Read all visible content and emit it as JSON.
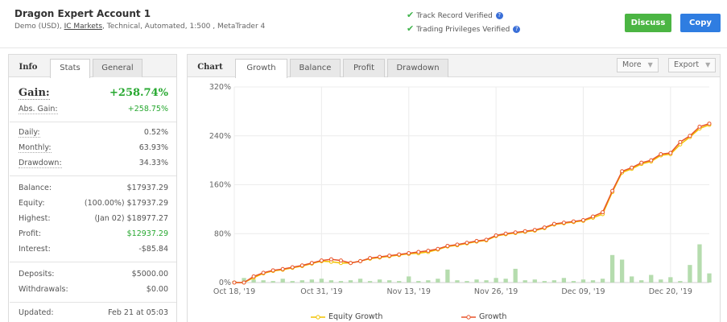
{
  "account": {
    "title": "Dragon Expert Account 1",
    "sub_prefix": "Demo (USD), ",
    "broker": "IC Markets",
    "sub_suffix": ", Technical, Automated, 1:500 , MetaTrader 4"
  },
  "verification": {
    "track_record": "Track Record Verified",
    "trading_privileges": "Trading Privileges Verified"
  },
  "buttons": {
    "discuss": "Discuss",
    "copy": "Copy"
  },
  "left_tabs": {
    "info": "Info",
    "stats": "Stats",
    "general": "General",
    "active": "stats"
  },
  "stats": {
    "gain_label": "Gain:",
    "gain_value": "+258.74%",
    "abs_gain_label": "Abs. Gain:",
    "abs_gain_value": "+258.75%",
    "daily_label": "Daily:",
    "daily_value": "0.52%",
    "monthly_label": "Monthly:",
    "monthly_value": "63.93%",
    "drawdown_label": "Drawdown:",
    "drawdown_value": "34.33%",
    "balance_label": "Balance:",
    "balance_value": "$17937.29",
    "equity_label": "Equity:",
    "equity_value": "(100.00%) $17937.29",
    "highest_label": "Highest:",
    "highest_value": "(Jan 02) $18977.27",
    "profit_label": "Profit:",
    "profit_value": "$12937.29",
    "interest_label": "Interest:",
    "interest_value": "-$85.84",
    "deposits_label": "Deposits:",
    "deposits_value": "$5000.00",
    "withdrawals_label": "Withdrawals:",
    "withdrawals_value": "$0.00",
    "updated_label": "Updated:",
    "updated_value": "Feb 21 at 05:03"
  },
  "chart_tabs": {
    "label": "Chart",
    "items": [
      "Growth",
      "Balance",
      "Profit",
      "Drawdown"
    ],
    "active": "Growth",
    "more": "More",
    "export": "Export"
  },
  "colors": {
    "green": "#27a830",
    "growth_line": "#e8542a",
    "equity_line": "#f2c200",
    "bars": "#b5dcae"
  },
  "chart_data": {
    "type": "line",
    "title": "",
    "xlabel": "",
    "ylabel": "",
    "ylim": [
      0,
      320
    ],
    "yticks": [
      0,
      80,
      160,
      240,
      320
    ],
    "ytick_labels": [
      "0%",
      "80%",
      "160%",
      "240%",
      "320%"
    ],
    "xtick_labels": [
      "Oct 18, '19",
      "Oct 31, '19",
      "Nov 13, '19",
      "Nov 26, '19",
      "Dec 09, '19",
      "Dec 20, '19"
    ],
    "xtick_positions": [
      0,
      9,
      18,
      27,
      36,
      45
    ],
    "grid": true,
    "legend_position": "bottom",
    "series": [
      {
        "name": "Growth",
        "values": [
          0,
          0,
          10,
          16,
          20,
          22,
          25,
          28,
          32,
          36,
          38,
          36,
          32,
          35,
          40,
          42,
          44,
          46,
          48,
          50,
          52,
          55,
          60,
          62,
          65,
          68,
          70,
          77,
          80,
          82,
          84,
          86,
          90,
          96,
          98,
          100,
          102,
          108,
          115,
          150,
          182,
          188,
          196,
          200,
          210,
          212,
          230,
          240,
          255,
          260
        ]
      },
      {
        "name": "Equity Growth",
        "values": [
          0,
          0,
          8,
          15,
          19,
          21,
          24,
          27,
          31,
          35,
          34,
          32,
          32,
          35,
          39,
          41,
          43,
          45,
          47,
          48,
          50,
          54,
          59,
          61,
          64,
          67,
          69,
          76,
          79,
          81,
          83,
          85,
          89,
          95,
          97,
          99,
          101,
          106,
          112,
          148,
          180,
          186,
          194,
          198,
          208,
          210,
          226,
          238,
          252,
          258
        ]
      }
    ],
    "bars": [
      2,
      6,
      4,
      3,
      2,
      5,
      2,
      3,
      4,
      5,
      3,
      2,
      3,
      5,
      2,
      4,
      3,
      2,
      8,
      2,
      3,
      5,
      17,
      3,
      2,
      4,
      3,
      6,
      5,
      18,
      3,
      4,
      2,
      3,
      6,
      2,
      4,
      3,
      5,
      36,
      30,
      8,
      3,
      10,
      4,
      7,
      2,
      23,
      50,
      12
    ]
  }
}
